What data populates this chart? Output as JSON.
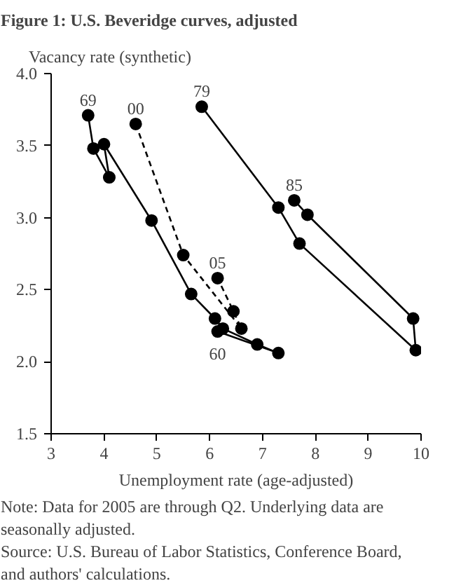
{
  "chart_data": {
    "type": "line",
    "title": "Figure 1: U.S. Beveridge curves, adjusted",
    "xlabel": "Unemployment rate (age-adjusted)",
    "ylabel": "Vacancy rate (synthetic)",
    "marker": "circle",
    "grid": false,
    "xlim": [
      3,
      10
    ],
    "xticks": [
      3,
      4,
      5,
      6,
      7,
      8,
      9,
      10
    ],
    "ylim": [
      1.5,
      4.0
    ],
    "yticks": [
      {
        "value": 1.5,
        "label": "1.5"
      },
      {
        "value": 2,
        "label": "2.0"
      },
      {
        "value": 2.5,
        "label": "2.5"
      },
      {
        "value": 3,
        "label": "3.0"
      },
      {
        "value": 3.5,
        "label": "3.5"
      },
      {
        "value": 4,
        "label": "4.0"
      }
    ],
    "series": [
      {
        "color": "#000000",
        "line_style": "solid",
        "x": [
          6.15,
          7.3,
          6.9,
          6.25,
          6.1,
          5.65,
          4.9,
          4.0,
          4.1,
          3.8,
          3.7
        ],
        "values": [
          2.21,
          2.06,
          2.12,
          2.23,
          2.3,
          2.47,
          2.98,
          3.51,
          3.28,
          3.48,
          3.71
        ]
      },
      {
        "color": "#000000",
        "line_style": "solid",
        "x": [
          5.85,
          7.3,
          7.7,
          9.9,
          9.85,
          7.85,
          7.6
        ],
        "values": [
          3.77,
          3.07,
          2.82,
          2.08,
          2.3,
          3.02,
          3.12
        ]
      },
      {
        "color": "#000000",
        "line_style": "dashed",
        "x": [
          4.6,
          5.5,
          6.6,
          6.45,
          6.15
        ],
        "values": [
          3.65,
          2.74,
          2.23,
          2.35,
          2.58
        ]
      }
    ],
    "annotations": [
      {
        "text": "69",
        "x": 3.7,
        "y": 3.71
      },
      {
        "text": "00",
        "x": 4.6,
        "y": 3.65
      },
      {
        "text": "79",
        "x": 5.85,
        "y": 3.77
      },
      {
        "text": "85",
        "x": 7.6,
        "y": 3.12
      },
      {
        "text": "05",
        "x": 6.15,
        "y": 2.58
      },
      {
        "text": "60",
        "x": 6.15,
        "y": 2.21
      },
      "Note: Data for 2005 are through Q2. Underlying data are seasonally adjusted.",
      "Source: U.S. Bureau of Labor Statistics, Conference Board, and authors' calculations."
    ]
  }
}
